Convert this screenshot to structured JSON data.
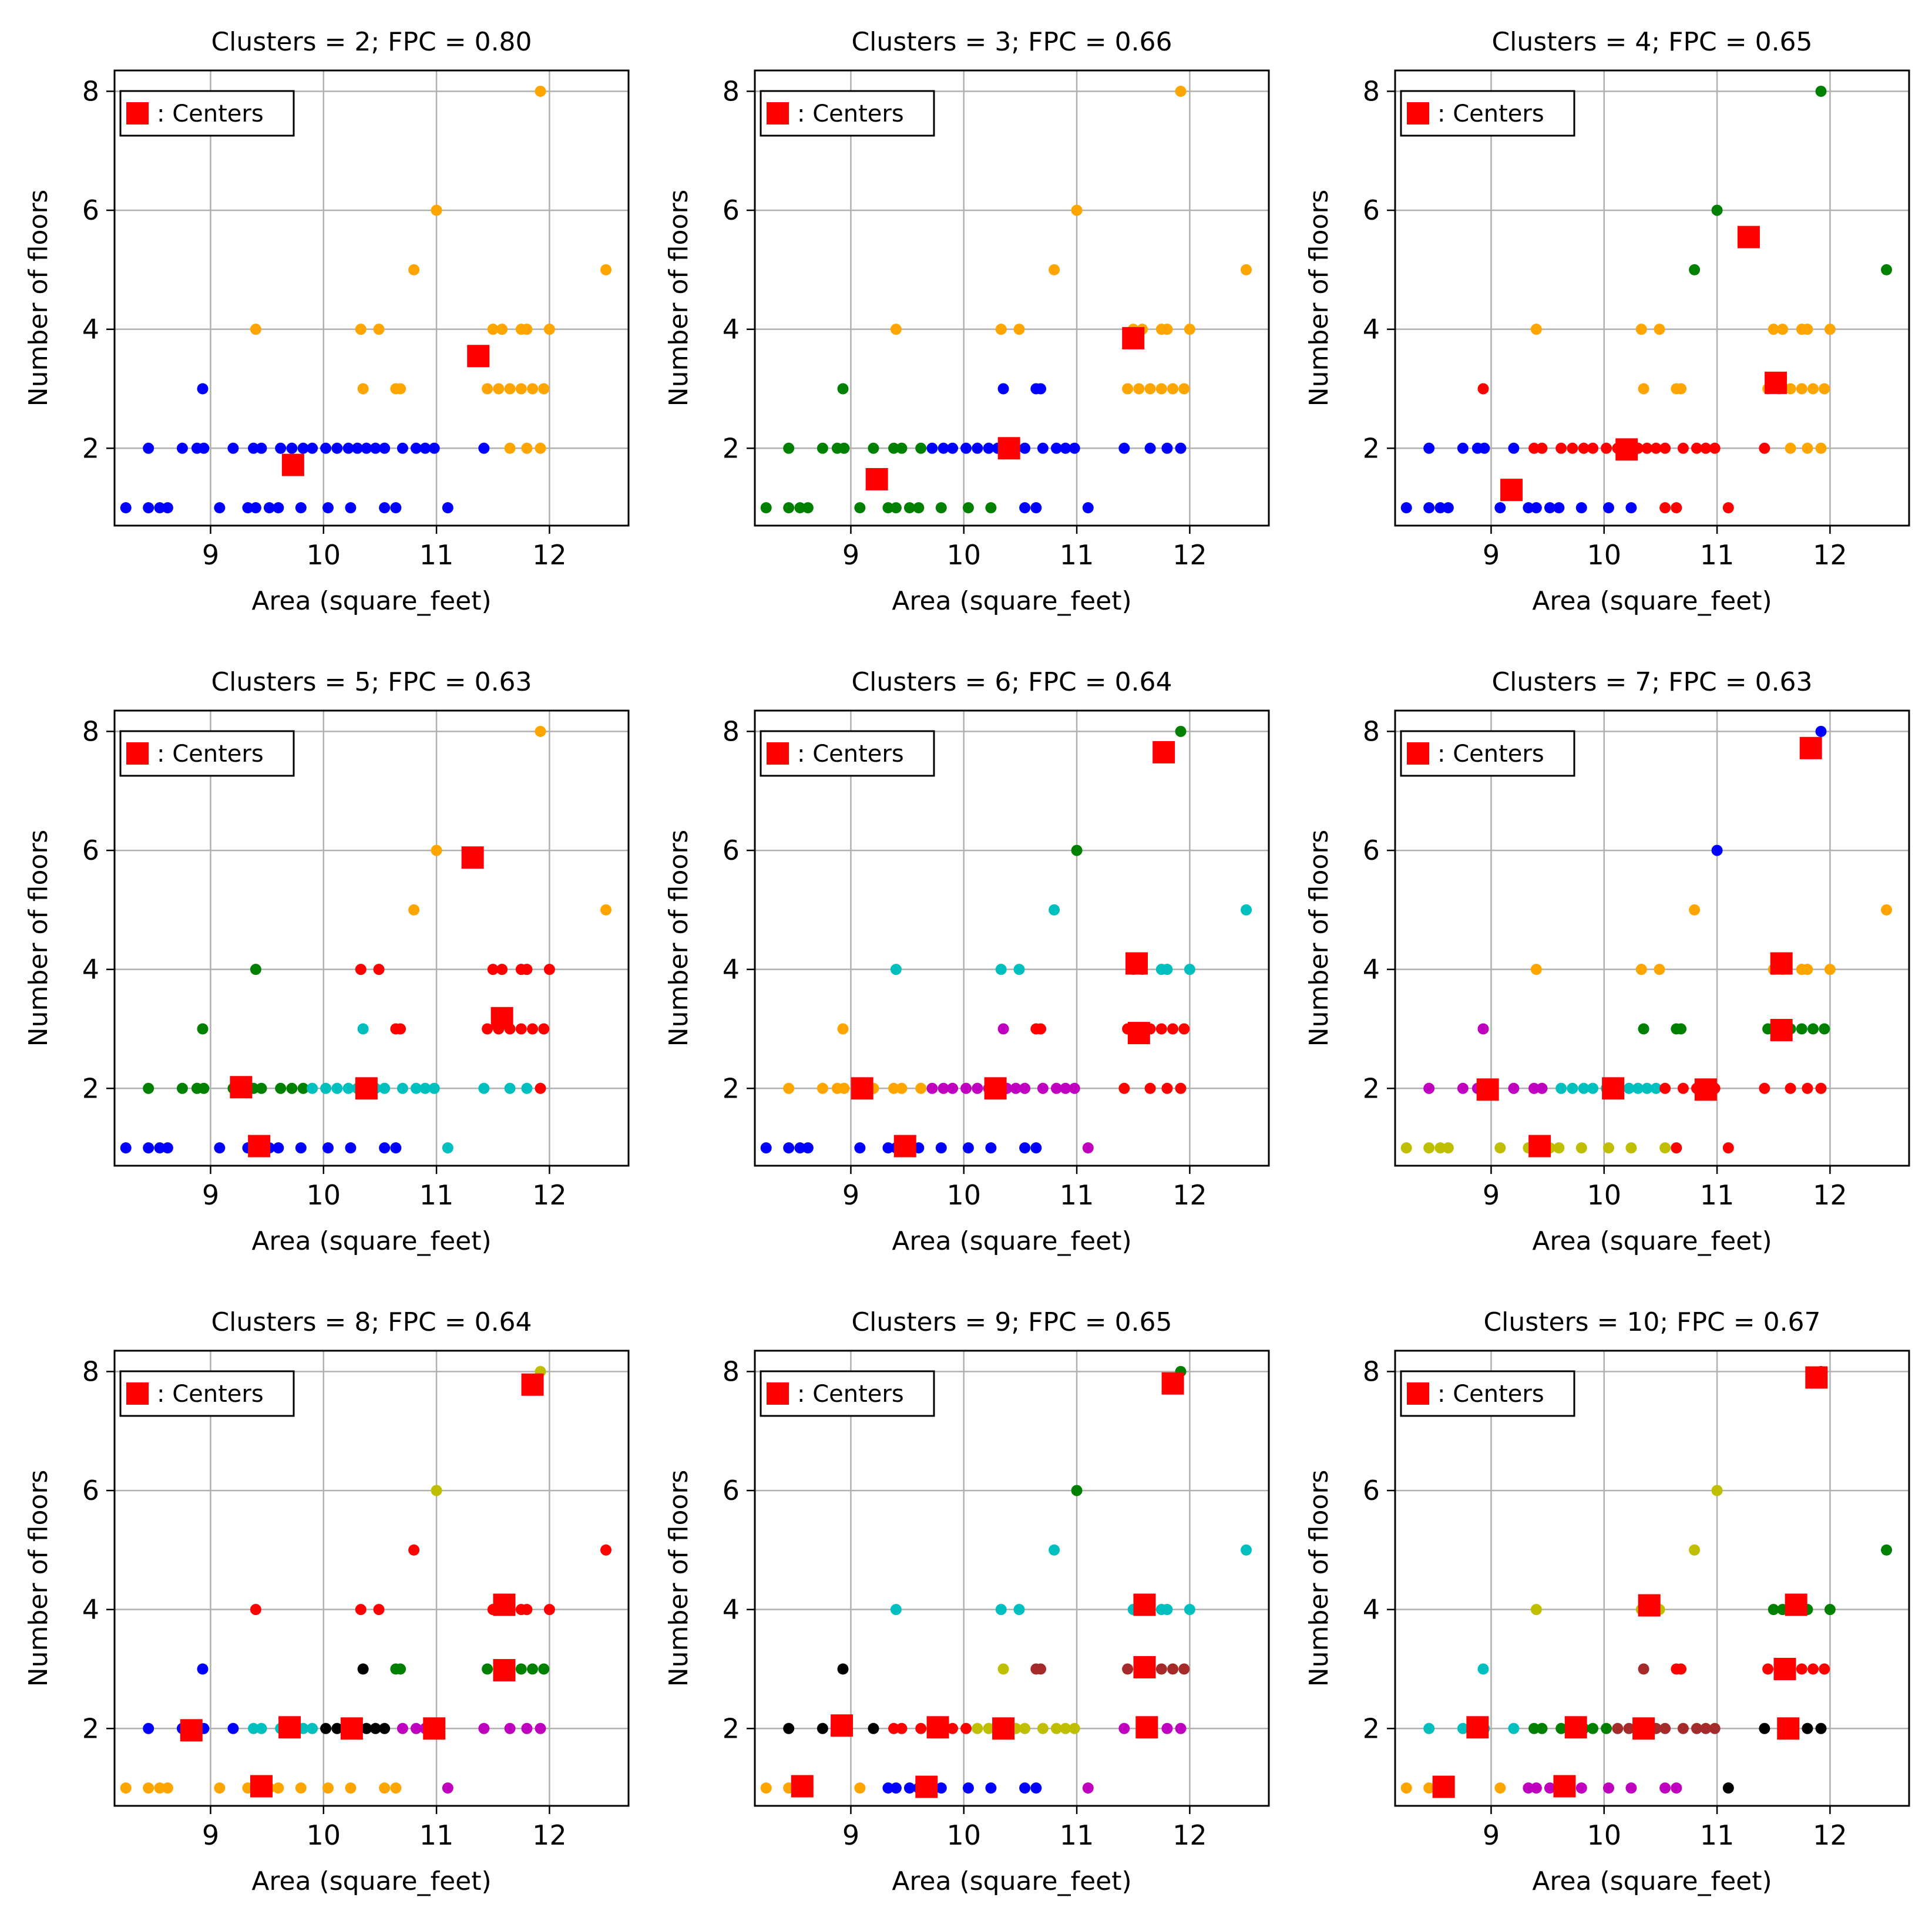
{
  "colors": {
    "blue": "#0000ff",
    "orange": "#ffa500",
    "green": "#008000",
    "red": "#ff0000",
    "cyan": "#00bfbf",
    "magenta": "#bf00bf",
    "yellow": "#bfbf00",
    "black": "#000000",
    "brown": "#a52a2a",
    "grid": "#b0b0b0",
    "center": "#ff0000"
  },
  "chart_data": {
    "type": "scatter",
    "xlabel": "Area (square_feet)",
    "ylabel": "Number of floors",
    "legend_label": ": Centers",
    "legend_position": "top-left",
    "grid": true,
    "xlim": [
      8.15,
      12.7
    ],
    "ylim": [
      0.7,
      8.35
    ],
    "xticks": [
      9,
      10,
      11,
      12
    ],
    "yticks": [
      2,
      4,
      6,
      8
    ],
    "base_points": [
      {
        "x": 8.25,
        "y": 1
      },
      {
        "x": 8.45,
        "y": 1
      },
      {
        "x": 8.55,
        "y": 1
      },
      {
        "x": 8.62,
        "y": 1
      },
      {
        "x": 9.08,
        "y": 1
      },
      {
        "x": 9.33,
        "y": 1
      },
      {
        "x": 9.4,
        "y": 1
      },
      {
        "x": 9.52,
        "y": 1
      },
      {
        "x": 9.6,
        "y": 1
      },
      {
        "x": 9.8,
        "y": 1
      },
      {
        "x": 10.04,
        "y": 1
      },
      {
        "x": 10.24,
        "y": 1
      },
      {
        "x": 10.54,
        "y": 1
      },
      {
        "x": 10.64,
        "y": 1
      },
      {
        "x": 11.1,
        "y": 1
      },
      {
        "x": 8.45,
        "y": 2
      },
      {
        "x": 8.75,
        "y": 2
      },
      {
        "x": 8.88,
        "y": 2
      },
      {
        "x": 8.94,
        "y": 2
      },
      {
        "x": 9.2,
        "y": 2
      },
      {
        "x": 9.38,
        "y": 2
      },
      {
        "x": 9.45,
        "y": 2
      },
      {
        "x": 9.62,
        "y": 2
      },
      {
        "x": 9.72,
        "y": 2
      },
      {
        "x": 9.82,
        "y": 2
      },
      {
        "x": 9.9,
        "y": 2
      },
      {
        "x": 10.02,
        "y": 2
      },
      {
        "x": 10.12,
        "y": 2
      },
      {
        "x": 10.22,
        "y": 2
      },
      {
        "x": 10.3,
        "y": 2
      },
      {
        "x": 10.38,
        "y": 2
      },
      {
        "x": 10.46,
        "y": 2
      },
      {
        "x": 10.54,
        "y": 2
      },
      {
        "x": 10.7,
        "y": 2
      },
      {
        "x": 10.82,
        "y": 2
      },
      {
        "x": 10.9,
        "y": 2
      },
      {
        "x": 10.98,
        "y": 2
      },
      {
        "x": 11.42,
        "y": 2
      },
      {
        "x": 11.65,
        "y": 2
      },
      {
        "x": 11.8,
        "y": 2
      },
      {
        "x": 11.92,
        "y": 2
      },
      {
        "x": 8.93,
        "y": 3
      },
      {
        "x": 10.35,
        "y": 3
      },
      {
        "x": 10.64,
        "y": 3
      },
      {
        "x": 10.68,
        "y": 3
      },
      {
        "x": 11.45,
        "y": 3
      },
      {
        "x": 11.55,
        "y": 3
      },
      {
        "x": 11.65,
        "y": 3
      },
      {
        "x": 11.75,
        "y": 3
      },
      {
        "x": 11.85,
        "y": 3
      },
      {
        "x": 11.95,
        "y": 3
      },
      {
        "x": 9.4,
        "y": 4
      },
      {
        "x": 10.33,
        "y": 4
      },
      {
        "x": 10.49,
        "y": 4
      },
      {
        "x": 11.5,
        "y": 4
      },
      {
        "x": 11.58,
        "y": 4
      },
      {
        "x": 11.75,
        "y": 4
      },
      {
        "x": 11.8,
        "y": 4
      },
      {
        "x": 12.0,
        "y": 4
      },
      {
        "x": 10.8,
        "y": 5
      },
      {
        "x": 12.5,
        "y": 5
      },
      {
        "x": 11.0,
        "y": 6
      },
      {
        "x": 11.92,
        "y": 8
      }
    ],
    "charts": [
      {
        "title": "Clusters = 2; FPC = 0.80",
        "clusters": 2,
        "fpc": 0.8,
        "cluster_colors": [
          "blue",
          "orange"
        ],
        "centers": [
          {
            "x": 9.73,
            "y": 1.72
          },
          {
            "x": 11.37,
            "y": 3.55
          }
        ]
      },
      {
        "title": "Clusters = 3; FPC = 0.66",
        "clusters": 3,
        "fpc": 0.66,
        "cluster_colors": [
          "green",
          "blue",
          "orange"
        ],
        "centers": [
          {
            "x": 9.23,
            "y": 1.48
          },
          {
            "x": 10.4,
            "y": 2.0
          },
          {
            "x": 11.5,
            "y": 3.85
          }
        ]
      },
      {
        "title": "Clusters = 4; FPC = 0.65",
        "clusters": 4,
        "fpc": 0.65,
        "cluster_colors": [
          "blue",
          "red",
          "orange",
          "green"
        ],
        "centers": [
          {
            "x": 9.18,
            "y": 1.3
          },
          {
            "x": 10.2,
            "y": 1.98
          },
          {
            "x": 11.52,
            "y": 3.1
          },
          {
            "x": 11.28,
            "y": 5.55
          }
        ]
      },
      {
        "title": "Clusters = 5; FPC = 0.63",
        "clusters": 5,
        "fpc": 0.63,
        "cluster_colors": [
          "blue",
          "green",
          "cyan",
          "red",
          "orange"
        ],
        "centers": [
          {
            "x": 9.43,
            "y": 1.03
          },
          {
            "x": 9.27,
            "y": 2.02
          },
          {
            "x": 10.38,
            "y": 2.0
          },
          {
            "x": 11.58,
            "y": 3.18
          },
          {
            "x": 11.32,
            "y": 5.88
          }
        ]
      },
      {
        "title": "Clusters = 6; FPC = 0.64",
        "clusters": 6,
        "fpc": 0.64,
        "cluster_colors": [
          "blue",
          "orange",
          "magenta",
          "red",
          "cyan",
          "green"
        ],
        "centers": [
          {
            "x": 9.48,
            "y": 1.03
          },
          {
            "x": 9.1,
            "y": 2.0
          },
          {
            "x": 10.28,
            "y": 2.0
          },
          {
            "x": 11.55,
            "y": 2.93
          },
          {
            "x": 11.53,
            "y": 4.1
          },
          {
            "x": 11.77,
            "y": 7.65
          }
        ]
      },
      {
        "title": "Clusters = 7; FPC = 0.63",
        "clusters": 7,
        "fpc": 0.63,
        "cluster_colors": [
          "yellow",
          "magenta",
          "cyan",
          "red",
          "green",
          "orange",
          "blue"
        ],
        "centers": [
          {
            "x": 9.43,
            "y": 1.03
          },
          {
            "x": 8.97,
            "y": 1.98
          },
          {
            "x": 10.08,
            "y": 2.0
          },
          {
            "x": 10.9,
            "y": 1.98
          },
          {
            "x": 11.57,
            "y": 2.98
          },
          {
            "x": 11.57,
            "y": 4.1
          },
          {
            "x": 11.83,
            "y": 7.72
          }
        ]
      },
      {
        "title": "Clusters = 8; FPC = 0.64",
        "clusters": 8,
        "fpc": 0.64,
        "cluster_colors": [
          "orange",
          "blue",
          "cyan",
          "black",
          "magenta",
          "green",
          "red",
          "yellow"
        ],
        "centers": [
          {
            "x": 9.45,
            "y": 1.03
          },
          {
            "x": 8.83,
            "y": 1.97
          },
          {
            "x": 9.7,
            "y": 2.02
          },
          {
            "x": 10.25,
            "y": 2.0
          },
          {
            "x": 10.98,
            "y": 2.0
          },
          {
            "x": 11.6,
            "y": 2.98
          },
          {
            "x": 11.6,
            "y": 4.08
          },
          {
            "x": 11.85,
            "y": 7.78
          }
        ]
      },
      {
        "title": "Clusters = 9; FPC = 0.65",
        "clusters": 9,
        "fpc": 0.65,
        "cluster_colors": [
          "orange",
          "blue",
          "black",
          "red",
          "yellow",
          "magenta",
          "brown",
          "cyan",
          "green"
        ],
        "centers": [
          {
            "x": 8.57,
            "y": 1.03
          },
          {
            "x": 9.67,
            "y": 1.02
          },
          {
            "x": 8.92,
            "y": 2.05
          },
          {
            "x": 9.77,
            "y": 2.02
          },
          {
            "x": 10.35,
            "y": 2.0
          },
          {
            "x": 11.62,
            "y": 2.02
          },
          {
            "x": 11.6,
            "y": 3.03
          },
          {
            "x": 11.6,
            "y": 4.08
          },
          {
            "x": 11.85,
            "y": 7.8
          }
        ]
      },
      {
        "title": "Clusters = 10; FPC = 0.67",
        "clusters": 10,
        "fpc": 0.67,
        "cluster_colors": [
          "orange",
          "magenta",
          "cyan",
          "green",
          "brown",
          "black",
          "red",
          "yellow",
          "green",
          "red"
        ],
        "centers": [
          {
            "x": 8.58,
            "y": 1.02
          },
          {
            "x": 9.65,
            "y": 1.03
          },
          {
            "x": 8.88,
            "y": 2.02
          },
          {
            "x": 9.75,
            "y": 2.02
          },
          {
            "x": 10.35,
            "y": 2.0
          },
          {
            "x": 11.63,
            "y": 2.0
          },
          {
            "x": 11.6,
            "y": 3.0
          },
          {
            "x": 10.4,
            "y": 4.07
          },
          {
            "x": 11.7,
            "y": 4.08
          },
          {
            "x": 11.88,
            "y": 7.9
          }
        ]
      }
    ]
  }
}
